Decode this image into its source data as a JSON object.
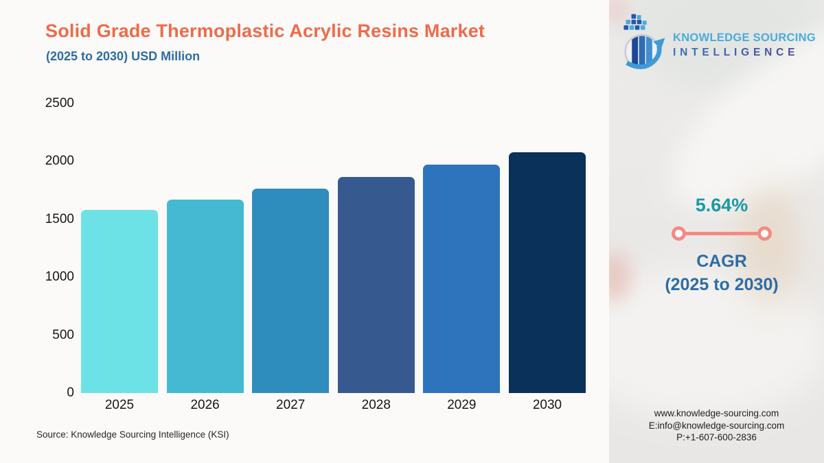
{
  "header": {
    "title": "Solid Grade Thermoplastic Acrylic Resins Market",
    "subtitle": "(2025 to 2030) USD Million",
    "title_color": "#ee6b4a",
    "subtitle_color": "#2d6ca6"
  },
  "logo": {
    "line1": "KNOWLEDGE SOURCING",
    "line2": "INTELLIGENCE",
    "line1_color": "#4aabdd",
    "line2_color_start": "#3a72b8",
    "line2_color_end": "#4f4099",
    "icon": "globe-bar-chart-arrow-icon"
  },
  "chart_data": {
    "type": "bar",
    "categories": [
      "2025",
      "2026",
      "2027",
      "2028",
      "2029",
      "2030"
    ],
    "values": [
      1580,
      1670,
      1765,
      1865,
      1970,
      2080
    ],
    "bar_colors": [
      "#6ce2e6",
      "#45b9d2",
      "#2f8dbd",
      "#365a90",
      "#2d74bd",
      "#0a3159"
    ],
    "title": "Solid Grade Thermoplastic Acrylic Resins Market",
    "subtitle": "(2025 to 2030) USD Million",
    "xlabel": "",
    "ylabel": "",
    "ylim": [
      0,
      2500
    ],
    "yticks": [
      0,
      500,
      1000,
      1500,
      2000,
      2500
    ],
    "grid": false,
    "legend": false,
    "axis_text_color": "#161616"
  },
  "cagr": {
    "value": "5.64%",
    "label": "CAGR",
    "period": "(2025 to 2030)",
    "value_color": "#1a98a8",
    "label_color": "#2d6ca6",
    "connector_icon": "line-with-endpoint-dots-icon",
    "connector_color": "#f28b84"
  },
  "footer": {
    "source": "Source: Knowledge Sourcing Intelligence (KSI)",
    "website": "www.knowledge-sourcing.com",
    "email": "E:info@knowledge-sourcing.com",
    "phone": "P:+1-607-600-2836"
  }
}
